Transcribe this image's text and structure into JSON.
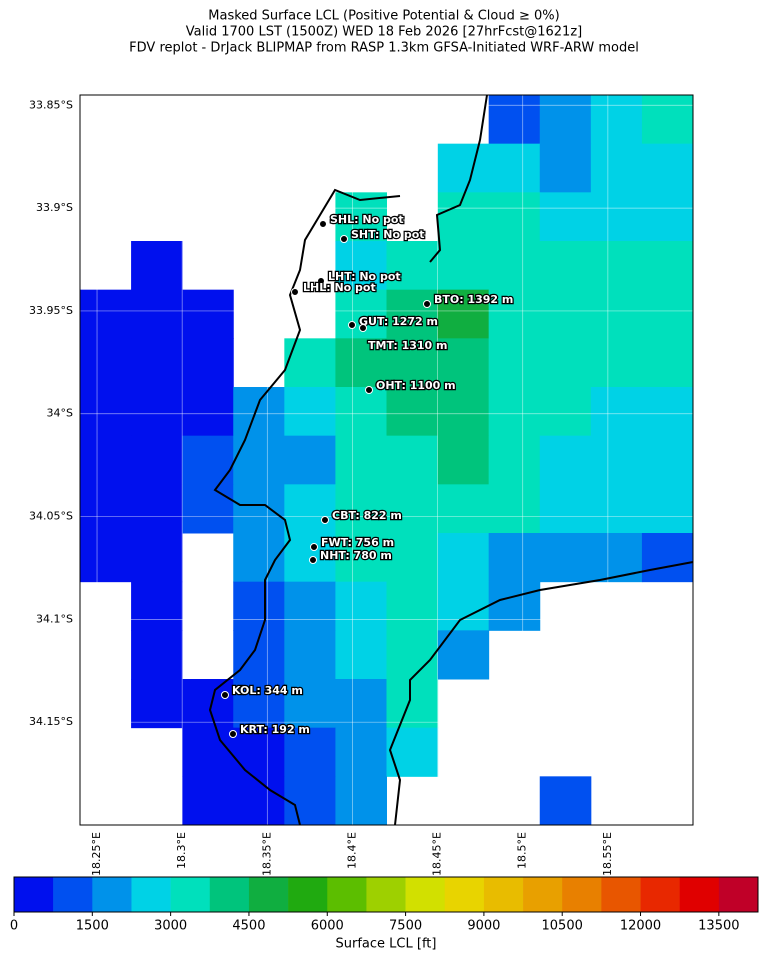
{
  "chart_data": {
    "type": "heatmap-map",
    "title_lines": [
      "Masked Surface LCL (Positive Potential & Cloud ≥ 0%)",
      "Valid 1700 LST (1500Z) WED 18 Feb 2026 [27hrFcst@1621z]",
      "FDV replot - DrJack BLIPMAP from RASP 1.3km GFSA-Initiated WRF-ARW model"
    ],
    "xlim": [
      18.24,
      18.6
    ],
    "ylim": [
      -34.2,
      -33.845
    ],
    "xticks": [
      {
        "value": 18.25,
        "label": "18.25°E"
      },
      {
        "value": 18.3,
        "label": "18.3°E"
      },
      {
        "value": 18.35,
        "label": "18.35°E"
      },
      {
        "value": 18.4,
        "label": "18.4°E"
      },
      {
        "value": 18.45,
        "label": "18.45°E"
      },
      {
        "value": 18.5,
        "label": "18.5°E"
      },
      {
        "value": 18.55,
        "label": "18.55°E"
      }
    ],
    "yticks": [
      {
        "value": -33.85,
        "label": "33.85°S"
      },
      {
        "value": -33.9,
        "label": "33.9°S"
      },
      {
        "value": -33.95,
        "label": "33.95°S"
      },
      {
        "value": -34,
        "label": "34°S"
      },
      {
        "value": -34.05,
        "label": "34.05°S"
      },
      {
        "value": -34.1,
        "label": "34.1°S"
      },
      {
        "value": -34.15,
        "label": "34.15°S"
      }
    ],
    "grid": true,
    "cells": [
      [
        null,
        null,
        null,
        null,
        null,
        null,
        null,
        null,
        1100,
        1900,
        2600,
        3400
      ],
      [
        null,
        null,
        null,
        null,
        null,
        null,
        null,
        2600,
        2600,
        1900,
        2600,
        2600
      ],
      [
        null,
        null,
        null,
        null,
        null,
        3400,
        null,
        3400,
        3400,
        2600,
        2600,
        2600
      ],
      [
        null,
        375,
        null,
        null,
        null,
        2600,
        3400,
        3400,
        3400,
        3400,
        3400,
        3400
      ],
      [
        375,
        375,
        375,
        null,
        null,
        3400,
        4100,
        4900,
        3400,
        3400,
        3400,
        3400
      ],
      [
        375,
        375,
        375,
        null,
        3400,
        4100,
        4100,
        4100,
        3400,
        3400,
        3400,
        3400
      ],
      [
        375,
        375,
        375,
        1900,
        2600,
        3400,
        4100,
        4100,
        3400,
        3400,
        2600,
        2600
      ],
      [
        375,
        375,
        1100,
        1900,
        1900,
        3400,
        3400,
        4100,
        3400,
        2600,
        2600,
        2600
      ],
      [
        375,
        375,
        1100,
        1900,
        2600,
        3400,
        3400,
        3400,
        3400,
        2600,
        2600,
        2600
      ],
      [
        375,
        375,
        null,
        1900,
        2600,
        3400,
        3400,
        2600,
        1900,
        1900,
        1900,
        1100
      ],
      [
        null,
        375,
        null,
        1100,
        1900,
        2600,
        3400,
        2600,
        1900,
        null,
        null,
        null
      ],
      [
        null,
        375,
        null,
        1100,
        1900,
        2600,
        3400,
        1900,
        null,
        null,
        null,
        null
      ],
      [
        null,
        375,
        375,
        1100,
        1900,
        1900,
        3400,
        null,
        null,
        null,
        null,
        null
      ],
      [
        null,
        null,
        375,
        375,
        1100,
        1900,
        2600,
        null,
        null,
        null,
        null,
        null
      ],
      [
        null,
        null,
        375,
        375,
        1100,
        1900,
        null,
        null,
        null,
        1100,
        null,
        null
      ]
    ],
    "stations": [
      "SHL: No pot",
      "SHT: No pot",
      "LHT: No pot",
      "LHL: No pot",
      "BTO: 1392 m",
      "GUT: 1272 m",
      "TMT: 1310 m",
      "OHT: 1100 m",
      "CBT: 822 m",
      "FWT: 756 m",
      "NHT: 780 m",
      "KOL: 344 m",
      "KRT: 192 m"
    ],
    "colorbar": {
      "label": "Surface LCL [ft]",
      "lim": [
        0,
        14250
      ],
      "band": 750,
      "ticks": [
        0,
        1500,
        3000,
        4500,
        6000,
        7500,
        9000,
        10500,
        12000,
        13500
      ],
      "colors": [
        "#0010ee",
        "#0050f0",
        "#0092ea",
        "#00d2e6",
        "#00e0bc",
        "#00c47c",
        "#10ae40",
        "#20aa10",
        "#5cbe00",
        "#9ed000",
        "#d2e000",
        "#e8d400",
        "#e8bc00",
        "#e8a000",
        "#e88000",
        "#e85600",
        "#e82800",
        "#e00000",
        "#c00028"
      ]
    }
  }
}
